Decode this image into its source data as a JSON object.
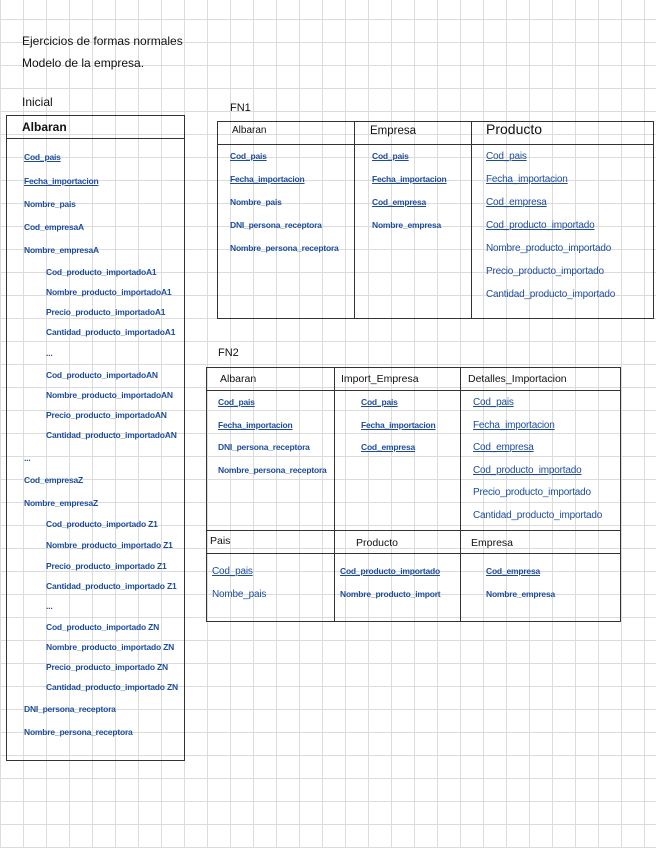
{
  "header": {
    "line1": "Ejercicios de formas normales",
    "line2": "Modelo de la empresa."
  },
  "inicial": {
    "label": "Inicial",
    "table": {
      "title": "Albaran",
      "items": [
        {
          "text": "Cod_pais",
          "key": true,
          "indent": 0
        },
        {
          "text": "Fecha_importacion",
          "key": true,
          "indent": 0
        },
        {
          "text": "Nombre_pais",
          "key": false,
          "indent": 0
        },
        {
          "text": "Cod_empresaA",
          "key": false,
          "indent": 0
        },
        {
          "text": "Nombre_empresaA",
          "key": false,
          "indent": 0
        },
        {
          "text": "Cod_producto_importadoA1",
          "key": false,
          "indent": 1
        },
        {
          "text": "Nombre_producto_importadoA1",
          "key": false,
          "indent": 1
        },
        {
          "text": "Precio_producto_importadoA1",
          "key": false,
          "indent": 1
        },
        {
          "text": "Cantidad_producto_importadoA1",
          "key": false,
          "indent": 1
        },
        {
          "text": "...",
          "key": false,
          "indent": 1
        },
        {
          "text": "Cod_producto_importadoAN",
          "key": false,
          "indent": 1
        },
        {
          "text": "Nombre_producto_importadoAN",
          "key": false,
          "indent": 1
        },
        {
          "text": "Precio_producto_importadoAN",
          "key": false,
          "indent": 1
        },
        {
          "text": "Cantidad_producto_importadoAN",
          "key": false,
          "indent": 1
        },
        {
          "text": "...",
          "key": false,
          "indent": 0
        },
        {
          "text": "Cod_empresaZ",
          "key": false,
          "indent": 0
        },
        {
          "text": "Nombre_empresaZ",
          "key": false,
          "indent": 0
        },
        {
          "text": "Cod_producto_importado Z1",
          "key": false,
          "indent": 1
        },
        {
          "text": "Nombre_producto_importado Z1",
          "key": false,
          "indent": 1
        },
        {
          "text": "Precio_producto_importado Z1",
          "key": false,
          "indent": 1
        },
        {
          "text": "Cantidad_producto_importado Z1",
          "key": false,
          "indent": 1
        },
        {
          "text": "...",
          "key": false,
          "indent": 1
        },
        {
          "text": "Cod_producto_importado ZN",
          "key": false,
          "indent": 1
        },
        {
          "text": "Nombre_producto_importado ZN",
          "key": false,
          "indent": 1
        },
        {
          "text": "Precio_producto_importado ZN",
          "key": false,
          "indent": 1
        },
        {
          "text": "Cantidad_producto_importado ZN",
          "key": false,
          "indent": 1
        },
        {
          "text": "DNI_persona_receptora",
          "key": false,
          "indent": 0
        },
        {
          "text": "Nombre_persona_receptora",
          "key": false,
          "indent": 0
        }
      ]
    }
  },
  "fn1": {
    "label": "FN1",
    "tables": [
      {
        "title": "Albaran",
        "items": [
          {
            "text": "Cod_pais",
            "key": true
          },
          {
            "text": "Fecha_importacion",
            "key": true
          },
          {
            "text": "Nombre_pais",
            "key": false
          },
          {
            "text": "DNI_persona_receptora",
            "key": false
          },
          {
            "text": "Nombre_persona_receptora",
            "key": false
          }
        ]
      },
      {
        "title": "Empresa",
        "items": [
          {
            "text": "Cod_pais",
            "key": true
          },
          {
            "text": "Fecha_importacion",
            "key": true
          },
          {
            "text": "Cod_empresa",
            "key": true
          },
          {
            "text": "Nombre_empresa",
            "key": false
          }
        ]
      },
      {
        "title": "Producto",
        "items": [
          {
            "text": "Cod_pais",
            "key": true
          },
          {
            "text": "Fecha_importacion",
            "key": true
          },
          {
            "text": "Cod_empresa",
            "key": true
          },
          {
            "text": "Cod_producto_importado",
            "key": true
          },
          {
            "text": "Nombre_producto_importado",
            "key": false
          },
          {
            "text": "Precio_producto_importado",
            "key": false
          },
          {
            "text": "Cantidad_producto_importado",
            "key": false
          }
        ]
      }
    ]
  },
  "fn2": {
    "label": "FN2",
    "tables": [
      {
        "title": "Albaran",
        "items": [
          {
            "text": "Cod_pais",
            "key": true
          },
          {
            "text": "Fecha_importacion",
            "key": true
          },
          {
            "text": "DNI_persona_receptora",
            "key": false
          },
          {
            "text": "Nombre_persona_receptora",
            "key": false
          }
        ]
      },
      {
        "title": "Import_Empresa",
        "items": [
          {
            "text": "Cod_pais",
            "key": true
          },
          {
            "text": "Fecha_importacion",
            "key": true
          },
          {
            "text": "Cod_empresa",
            "key": true
          }
        ]
      },
      {
        "title": "Detalles_Importacion",
        "items": [
          {
            "text": "Cod_pais",
            "key": true
          },
          {
            "text": "Fecha_importacion",
            "key": true
          },
          {
            "text": "Cod_empresa",
            "key": true
          },
          {
            "text": "Cod_producto_importado",
            "key": true
          },
          {
            "text": "Precio_producto_importado",
            "key": false
          },
          {
            "text": "Cantidad_producto_importado",
            "key": false
          }
        ]
      },
      {
        "title": "Pais",
        "items": [
          {
            "text": "Cod_pais",
            "key": true
          },
          {
            "text": "Nombe_pais",
            "key": false
          }
        ]
      },
      {
        "title": "Producto",
        "items": [
          {
            "text": "Cod_producto_importado",
            "key": true
          },
          {
            "text": "Nombre_producto_import",
            "key": false
          }
        ]
      },
      {
        "title": "Empresa",
        "items": [
          {
            "text": "Cod_empresa",
            "key": true
          },
          {
            "text": "Nombre_empresa",
            "key": false
          }
        ]
      }
    ]
  },
  "colors": {
    "ink": "#111111",
    "field_ink": "#1d4c9c",
    "grid": "#dcdcdc"
  }
}
